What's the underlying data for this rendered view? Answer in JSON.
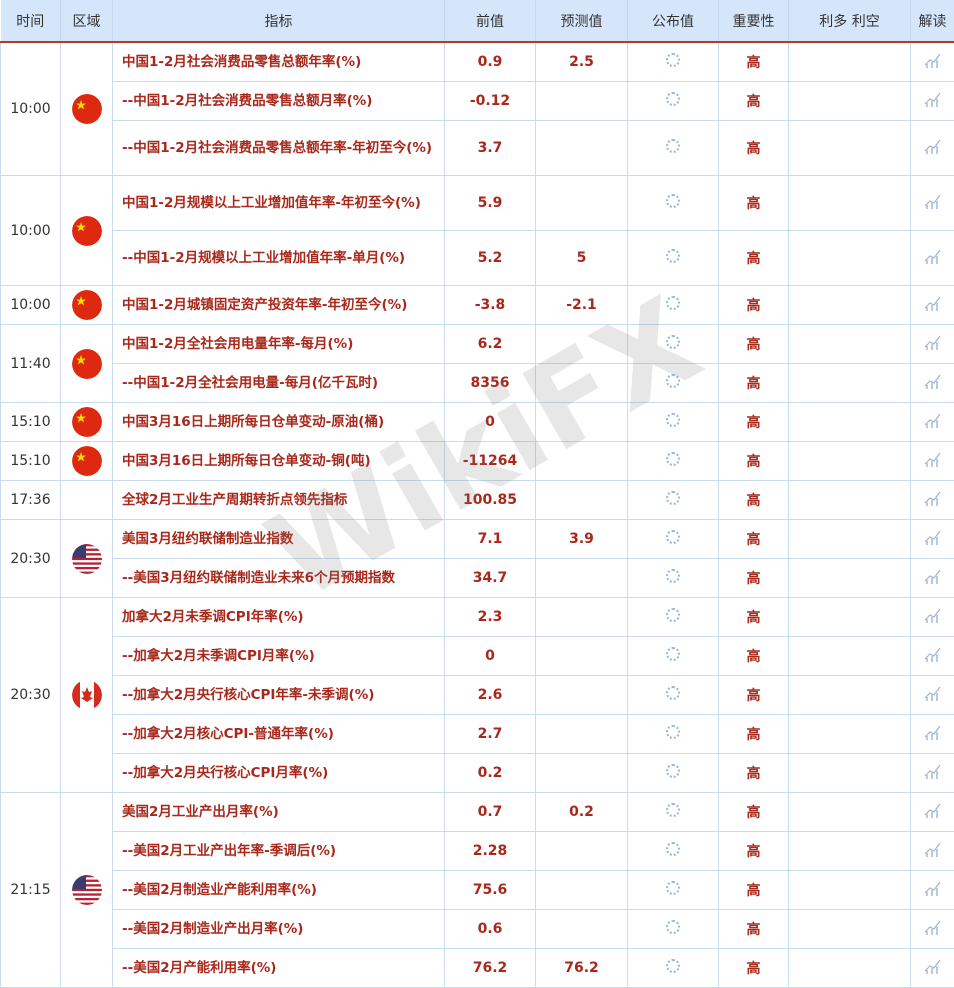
{
  "headers": [
    "时间",
    "区域",
    "指标",
    "前值",
    "预测值",
    "公布值",
    "重要性",
    "利多 利空",
    "解读"
  ],
  "colors": {
    "header_bg": "#d6e6fa",
    "accent_red": "#a8281c",
    "divider": "#b5382f"
  },
  "watermark": "WikiFX",
  "groups": [
    {
      "time": "10:00",
      "region": "china-flag-icon",
      "rows": [
        {
          "indicator": "中国1-2月社会消费品零售总额年率(%)",
          "prev": "0.9",
          "forecast": "2.5",
          "importance": "高"
        },
        {
          "indicator": "--中国1-2月社会消费品零售总额月率(%)",
          "prev": "-0.12",
          "forecast": "",
          "importance": "高"
        },
        {
          "indicator": "--中国1-2月社会消费品零售总额年率-年初至今(%)",
          "prev": "3.7",
          "forecast": "",
          "importance": "高"
        }
      ]
    },
    {
      "time": "10:00",
      "region": "china-flag-icon",
      "rows": [
        {
          "indicator": "中国1-2月规模以上工业增加值年率-年初至今(%)",
          "prev": "5.9",
          "forecast": "",
          "importance": "高"
        },
        {
          "indicator": "--中国1-2月规模以上工业增加值年率-单月(%)",
          "prev": "5.2",
          "forecast": "5",
          "importance": "高"
        }
      ]
    },
    {
      "time": "10:00",
      "region": "china-flag-icon",
      "rows": [
        {
          "indicator": "中国1-2月城镇固定资产投资年率-年初至今(%)",
          "prev": "-3.8",
          "forecast": "-2.1",
          "importance": "高"
        }
      ]
    },
    {
      "time": "11:40",
      "region": "china-flag-icon",
      "rows": [
        {
          "indicator": "中国1-2月全社会用电量年率-每月(%)",
          "prev": "6.2",
          "forecast": "",
          "importance": "高"
        },
        {
          "indicator": "--中国1-2月全社会用电量-每月(亿千瓦时)",
          "prev": "8356",
          "forecast": "",
          "importance": "高"
        }
      ]
    },
    {
      "time": "15:10",
      "region": "china-flag-icon",
      "rows": [
        {
          "indicator": "中国3月16日上期所每日仓单变动-原油(桶)",
          "prev": "0",
          "forecast": "",
          "importance": "高"
        }
      ]
    },
    {
      "time": "15:10",
      "region": "china-flag-icon",
      "rows": [
        {
          "indicator": "中国3月16日上期所每日仓单变动-铜(吨)",
          "prev": "-11264",
          "forecast": "",
          "importance": "高"
        }
      ]
    },
    {
      "time": "17:36",
      "region": "",
      "rows": [
        {
          "indicator": "全球2月工业生产周期转折点领先指标",
          "prev": "100.85",
          "forecast": "",
          "importance": "高"
        }
      ]
    },
    {
      "time": "20:30",
      "region": "us-flag-icon",
      "rows": [
        {
          "indicator": "美国3月纽约联储制造业指数",
          "prev": "7.1",
          "forecast": "3.9",
          "importance": "高"
        },
        {
          "indicator": "--美国3月纽约联储制造业未来6个月预期指数",
          "prev": "34.7",
          "forecast": "",
          "importance": "高"
        }
      ]
    },
    {
      "time": "20:30",
      "region": "canada-flag-icon",
      "rows": [
        {
          "indicator": "加拿大2月未季调CPI年率(%)",
          "prev": "2.3",
          "forecast": "",
          "importance": "高"
        },
        {
          "indicator": "--加拿大2月未季调CPI月率(%)",
          "prev": "0",
          "forecast": "",
          "importance": "高"
        },
        {
          "indicator": "--加拿大2月央行核心CPI年率-未季调(%)",
          "prev": "2.6",
          "forecast": "",
          "importance": "高"
        },
        {
          "indicator": "--加拿大2月核心CPI-普通年率(%)",
          "prev": "2.7",
          "forecast": "",
          "importance": "高"
        },
        {
          "indicator": "--加拿大2月央行核心CPI月率(%)",
          "prev": "0.2",
          "forecast": "",
          "importance": "高"
        }
      ]
    },
    {
      "time": "21:15",
      "region": "us-flag-icon",
      "rows": [
        {
          "indicator": "美国2月工业产出月率(%)",
          "prev": "0.7",
          "forecast": "0.2",
          "importance": "高"
        },
        {
          "indicator": "--美国2月工业产出年率-季调后(%)",
          "prev": "2.28",
          "forecast": "",
          "importance": "高"
        },
        {
          "indicator": "--美国2月制造业产能利用率(%)",
          "prev": "75.6",
          "forecast": "",
          "importance": "高"
        },
        {
          "indicator": "--美国2月制造业产出月率(%)",
          "prev": "0.6",
          "forecast": "",
          "importance": "高"
        },
        {
          "indicator": "--美国2月产能利用率(%)",
          "prev": "76.2",
          "forecast": "76.2",
          "importance": "高"
        }
      ]
    }
  ]
}
